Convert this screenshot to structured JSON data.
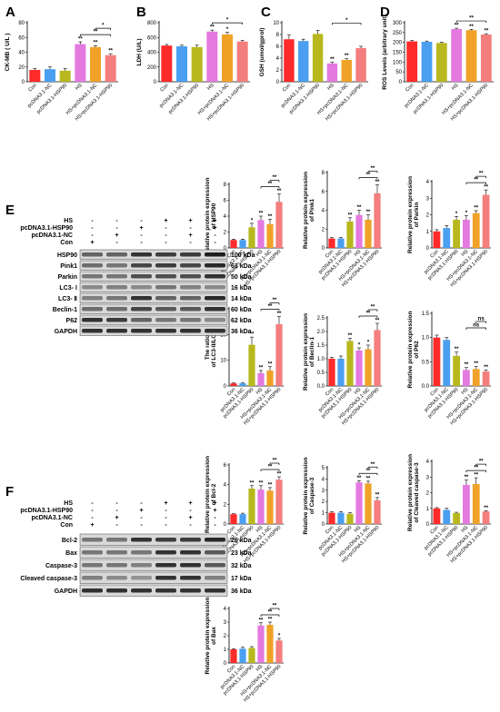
{
  "figure_labels": {
    "A": "A",
    "B": "B",
    "C": "C",
    "D": "D",
    "E": "E",
    "F": "F"
  },
  "colors": {
    "Con": "#ff2a2a",
    "pcDNA3.1-NC": "#4a9ff0",
    "pcDNA3.1-HSP90": "#b8b81e",
    "HS": "#e479e0",
    "HS+pcDNA3.1-NC": "#f0a228",
    "HS+pcDNA3.1-HSP90": "#f47d7d"
  },
  "blot_E": {
    "conditions": [
      "HS",
      "pcDNA3.1-HSP90",
      "pcDNA3.1-NC",
      "Con"
    ],
    "signs": [
      [
        "-",
        "-",
        "-",
        "+",
        "+",
        "+"
      ],
      [
        "-",
        "-",
        "+",
        "-",
        "-",
        "+"
      ],
      [
        "-",
        "+",
        "-",
        "-",
        "+",
        "-"
      ],
      [
        "+",
        "-",
        "-",
        "-",
        "-",
        "-"
      ]
    ],
    "proteins": [
      "HSP90",
      "Pink1",
      "Parkin",
      "LC3- Ⅰ",
      "LC3- Ⅱ",
      "Beclin-1",
      "P62",
      "GAPDH"
    ],
    "sizes": [
      "100 kDa",
      "63 kDa",
      "50 kDa",
      "16 kDa",
      "14 kDa",
      "60 kDa",
      "62 kDa",
      "36 kDa"
    ]
  },
  "blot_F": {
    "conditions": [
      "HS",
      "pcDNA3.1-HSP90",
      "pcDNA3.1-NC",
      "Con"
    ],
    "signs": [
      [
        "-",
        "-",
        "-",
        "+",
        "+",
        "+"
      ],
      [
        "-",
        "-",
        "+",
        "-",
        "-",
        "+"
      ],
      [
        "-",
        "+",
        "-",
        "-",
        "+",
        "-"
      ],
      [
        "+",
        "-",
        "-",
        "-",
        "-",
        "-"
      ]
    ],
    "proteins": [
      "Bcl-2",
      "Bax",
      "Caspase-3",
      "Cleaved caspase-3",
      "GAPDH"
    ],
    "sizes": [
      "26 kDa",
      "23 kDa",
      "32 kDa",
      "17 kDa",
      "36 kDa"
    ]
  },
  "chart_data": [
    {
      "id": "A",
      "type": "bar",
      "ylabel": "CK-MB ( U/L )",
      "ylim": [
        0,
        80
      ],
      "yticks": [
        0,
        20,
        40,
        60,
        80
      ],
      "categories": [
        "Con",
        "pcDNA3.1-NC",
        "pcDNA3.1-HSP90",
        "HS",
        "HS+pcDNA3.1-NC",
        "HS+pcDNA3.1-HSP90"
      ],
      "values": [
        16,
        17,
        15,
        51,
        47,
        36
      ],
      "errors": [
        2,
        3,
        3,
        3,
        2,
        2
      ],
      "bar_sig": [
        "",
        "",
        "",
        "**",
        "**",
        "**"
      ],
      "brackets": [
        {
          "from": 3,
          "to": 5,
          "label": "**",
          "level": 0
        },
        {
          "from": 4,
          "to": 5,
          "label": "*",
          "level": 1
        }
      ]
    },
    {
      "id": "B",
      "type": "bar",
      "ylabel": "LDH (U/L)",
      "ylim": [
        0,
        800
      ],
      "yticks": [
        0,
        200,
        400,
        600,
        800
      ],
      "categories": [
        "Con",
        "pcDNA3.1-NC",
        "pcDNA3.1-HSP90",
        "HS",
        "HS+pcDNA3.1-NC",
        "HS+pcDNA3.1-HSP90"
      ],
      "values": [
        490,
        480,
        470,
        680,
        640,
        545
      ],
      "errors": [
        15,
        15,
        25,
        20,
        30,
        15
      ],
      "bar_sig": [
        "",
        "",
        "",
        "**",
        "*",
        ""
      ],
      "brackets": [
        {
          "from": 3,
          "to": 5,
          "label": "*",
          "level": 0
        }
      ]
    },
    {
      "id": "C",
      "type": "bar",
      "ylabel": "GSH (umol/gprol)",
      "ylim": [
        0,
        10
      ],
      "yticks": [
        0,
        2,
        4,
        6,
        8,
        10
      ],
      "categories": [
        "Con",
        "pcDNA3.1-NC",
        "pcDNA3.1-HSP90",
        "HS",
        "HS+pcDNA3.1-NC",
        "HS+pcDNA3.1-HSP90"
      ],
      "values": [
        7.2,
        6.9,
        8.1,
        3.1,
        3.7,
        5.7
      ],
      "errors": [
        0.7,
        0.3,
        0.6,
        0.2,
        0.2,
        0.3
      ],
      "bar_sig": [
        "",
        "",
        "",
        "**",
        "**",
        ""
      ],
      "brackets": [
        {
          "from": 3,
          "to": 5,
          "label": "*",
          "level": 0
        }
      ]
    },
    {
      "id": "D",
      "type": "bar",
      "ylabel": "ROS Levels (arbitrary unit)",
      "ylim": [
        0,
        300
      ],
      "yticks": [
        0,
        50,
        100,
        150,
        200,
        250,
        300
      ],
      "categories": [
        "Con",
        "pcDNA3.1-NC",
        "pcDNA3.1-HSP90",
        "HS",
        "HS+pcDNA3.1-NC",
        "HS+pcDNA3.1-HSP90"
      ],
      "values": [
        205,
        203,
        197,
        268,
        262,
        240
      ],
      "errors": [
        5,
        4,
        4,
        4,
        4,
        4
      ],
      "bar_sig": [
        "",
        "",
        "",
        "**",
        "**",
        "**"
      ],
      "brackets": [
        {
          "from": 3,
          "to": 5,
          "label": "**",
          "level": 0
        }
      ]
    },
    {
      "id": "E1",
      "type": "bar",
      "ylabel": "Relative protein expression of HSP90",
      "ylim": [
        0,
        8
      ],
      "yticks": [
        0,
        2,
        4,
        6,
        8
      ],
      "categories": [
        "Con",
        "pcDNA3.1-NC",
        "pcDNA3.1-HSP90",
        "HS",
        "HS+pcDNA3.1-NC",
        "HS+pcDNA3.1-HSP90"
      ],
      "values": [
        1.0,
        1.0,
        2.6,
        3.5,
        3.0,
        5.8
      ],
      "errors": [
        0.1,
        0.1,
        0.5,
        0.5,
        0.6,
        1.0
      ],
      "bar_sig": [
        "",
        "",
        "*",
        "**",
        "**",
        "**"
      ],
      "brackets": [
        {
          "from": 3,
          "to": 5,
          "label": "**",
          "level": 0
        },
        {
          "from": 4,
          "to": 5,
          "label": "**",
          "level": 1
        }
      ]
    },
    {
      "id": "E2",
      "type": "bar",
      "ylabel": "Relative protein expression of Pink1",
      "ylim": [
        0,
        8
      ],
      "yticks": [
        0,
        2,
        4,
        6,
        8
      ],
      "categories": [
        "Con",
        "pcDNA3.1-NC",
        "pcDNA3.1-HSP90",
        "HS",
        "HS+pcDNA3.1-NC",
        "HS+pcDNA3.1-HSP90"
      ],
      "values": [
        1.0,
        1.0,
        2.8,
        3.5,
        3.0,
        5.8
      ],
      "errors": [
        0.1,
        0.1,
        0.4,
        0.5,
        0.5,
        0.9
      ],
      "bar_sig": [
        "",
        "",
        "**",
        "**",
        "**",
        "**"
      ],
      "brackets": [
        {
          "from": 3,
          "to": 5,
          "label": "**",
          "level": 0
        },
        {
          "from": 4,
          "to": 5,
          "label": "**",
          "level": 1
        }
      ]
    },
    {
      "id": "E3",
      "type": "bar",
      "ylabel": "Relative protein expression of Parkin",
      "ylim": [
        0,
        4
      ],
      "yticks": [
        0,
        1,
        2,
        3,
        4
      ],
      "categories": [
        "Con",
        "pcDNA3.1-NC",
        "pcDNA3.1-HSP90",
        "HS",
        "HS+pcDNA3.1-NC",
        "HS+pcDNA3.1-HSP90"
      ],
      "values": [
        1.0,
        1.2,
        1.7,
        1.7,
        2.1,
        3.2
      ],
      "errors": [
        0.1,
        0.15,
        0.2,
        0.25,
        0.15,
        0.3
      ],
      "bar_sig": [
        "",
        "",
        "*",
        "*",
        "**",
        "**"
      ],
      "brackets": [
        {
          "from": 3,
          "to": 5,
          "label": "**",
          "level": 0
        },
        {
          "from": 4,
          "to": 5,
          "label": "**",
          "level": 1
        }
      ]
    },
    {
      "id": "E4",
      "type": "bar",
      "ylabel": "The ratio of LC3-II/LC3-I",
      "ylim": [
        0,
        30
      ],
      "yticks": [
        0,
        10,
        20,
        30
      ],
      "categories": [
        "Con",
        "pcDNA3.1-NC",
        "pcDNA3.1-HSP90",
        "HS",
        "HS+pcDNA3.1-NC",
        "HS+pcDNA3.1-HSP90"
      ],
      "values": [
        1.0,
        1.0,
        16,
        5,
        6,
        24
      ],
      "errors": [
        0.2,
        0.2,
        3,
        1,
        1.5,
        3
      ],
      "bar_sig": [
        "",
        "",
        "**",
        "**",
        "**",
        "**"
      ],
      "brackets": [
        {
          "from": 3,
          "to": 5,
          "label": "**",
          "level": 0
        },
        {
          "from": 4,
          "to": 5,
          "label": "**",
          "level": 1
        }
      ]
    },
    {
      "id": "E5",
      "type": "bar",
      "ylabel": "Relative protein expression of Beclin-1",
      "ylim": [
        0,
        2.5
      ],
      "yticks": [
        0,
        0.5,
        1.0,
        1.5,
        2.0,
        2.5
      ],
      "categories": [
        "Con",
        "pcDNA3.1-NC",
        "pcDNA3.1-HSP90",
        "HS",
        "HS+pcDNA3.1-NC",
        "HS+pcDNA3.1-HSP90"
      ],
      "values": [
        1.0,
        1.0,
        1.65,
        1.3,
        1.35,
        2.05
      ],
      "errors": [
        0.05,
        0.1,
        0.1,
        0.1,
        0.15,
        0.25
      ],
      "bar_sig": [
        "",
        "",
        "**",
        "*",
        "*",
        "**"
      ],
      "brackets": [
        {
          "from": 3,
          "to": 5,
          "label": "**",
          "level": 0
        },
        {
          "from": 4,
          "to": 5,
          "label": "**",
          "level": 1
        }
      ]
    },
    {
      "id": "E6",
      "type": "bar",
      "ylabel": "Relative protein expression of P62",
      "ylim": [
        0,
        1.5
      ],
      "yticks": [
        0,
        0.5,
        1.0,
        1.5
      ],
      "categories": [
        "Con",
        "pcDNA3.1-NC",
        "pcDNA3.1-HSP90",
        "HS",
        "HS+pcDNA3.1-NC",
        "HS+pcDNA3.1-HSP90"
      ],
      "values": [
        1.0,
        0.95,
        0.62,
        0.33,
        0.35,
        0.3
      ],
      "errors": [
        0.05,
        0.05,
        0.08,
        0.05,
        0.05,
        0.03
      ],
      "bar_sig": [
        "",
        "",
        "**",
        "**",
        "**",
        "**"
      ],
      "brackets": [
        {
          "from": 3,
          "to": 5,
          "label": "ns",
          "level": 0
        },
        {
          "from": 4,
          "to": 5,
          "label": "ns",
          "level": 1
        }
      ]
    },
    {
      "id": "F1",
      "type": "bar",
      "ylabel": "Relative protein expression of Bcl-2",
      "ylim": [
        0,
        6
      ],
      "yticks": [
        0,
        2,
        4,
        6
      ],
      "categories": [
        "Con",
        "pcDNA3.1-NC",
        "pcDNA3.1-HSP90",
        "HS",
        "HS+pcDNA3.1-NC",
        "HS+pcDNA3.1-HSP90"
      ],
      "values": [
        1.0,
        1.0,
        3.6,
        3.5,
        3.4,
        4.5
      ],
      "errors": [
        0.05,
        0.1,
        0.3,
        0.4,
        0.3,
        0.3
      ],
      "bar_sig": [
        "",
        "",
        "**",
        "**",
        "**",
        "**"
      ],
      "brackets": [
        {
          "from": 3,
          "to": 5,
          "label": "**",
          "level": 0
        },
        {
          "from": 4,
          "to": 5,
          "label": "**",
          "level": 1
        }
      ]
    },
    {
      "id": "F2",
      "type": "bar",
      "ylabel": "Relative protein expression of Caspase-3",
      "ylim": [
        0,
        5
      ],
      "yticks": [
        0,
        1,
        2,
        3,
        4,
        5
      ],
      "categories": [
        "Con",
        "pcDNA3.1-NC",
        "pcDNA3.1-HSP90",
        "HS",
        "HS+pcDNA3.1-NC",
        "HS+pcDNA3.1-HSP90"
      ],
      "values": [
        1.0,
        1.0,
        0.9,
        3.7,
        3.6,
        2.1
      ],
      "errors": [
        0.1,
        0.1,
        0.1,
        0.15,
        0.2,
        0.25
      ],
      "bar_sig": [
        "",
        "",
        "",
        "**",
        "**",
        "**"
      ],
      "brackets": [
        {
          "from": 3,
          "to": 5,
          "label": "**",
          "level": 0
        },
        {
          "from": 4,
          "to": 5,
          "label": "**",
          "level": 1
        }
      ]
    },
    {
      "id": "F3",
      "type": "bar",
      "ylabel": "Relative protein expression of Cleaved caspase-3",
      "ylim": [
        0,
        4
      ],
      "yticks": [
        0,
        1,
        2,
        3,
        4
      ],
      "categories": [
        "Con",
        "pcDNA3.1-NC",
        "pcDNA3.1-HSP90",
        "HS",
        "HS+pcDNA3.1-NC",
        "HS+pcDNA3.1-HSP90"
      ],
      "values": [
        1.0,
        0.9,
        0.7,
        2.5,
        2.55,
        0.8
      ],
      "errors": [
        0.05,
        0.1,
        0.05,
        0.3,
        0.4,
        0.05
      ],
      "bar_sig": [
        "",
        "",
        "",
        "**",
        "**",
        "**"
      ],
      "brackets": [
        {
          "from": 3,
          "to": 5,
          "label": "**",
          "level": 0
        },
        {
          "from": 4,
          "to": 5,
          "label": "**",
          "level": 1
        }
      ]
    },
    {
      "id": "F4",
      "type": "bar",
      "ylabel": "Relative protein expression of Bax",
      "ylim": [
        0,
        4
      ],
      "yticks": [
        0,
        1,
        2,
        3,
        4
      ],
      "categories": [
        "Con",
        "pcDNA3.1-NC",
        "pcDNA3.1-HSP90",
        "HS",
        "HS+pcDNA3.1-NC",
        "HS+pcDNA3.1-HSP90"
      ],
      "values": [
        1.0,
        1.05,
        1.1,
        2.75,
        2.8,
        1.65
      ],
      "errors": [
        0.05,
        0.1,
        0.1,
        0.2,
        0.2,
        0.15
      ],
      "bar_sig": [
        "",
        "",
        "",
        "**",
        "**",
        "*"
      ],
      "brackets": [
        {
          "from": 3,
          "to": 5,
          "label": "**",
          "level": 0
        },
        {
          "from": 4,
          "to": 5,
          "label": "**",
          "level": 1
        }
      ]
    }
  ]
}
